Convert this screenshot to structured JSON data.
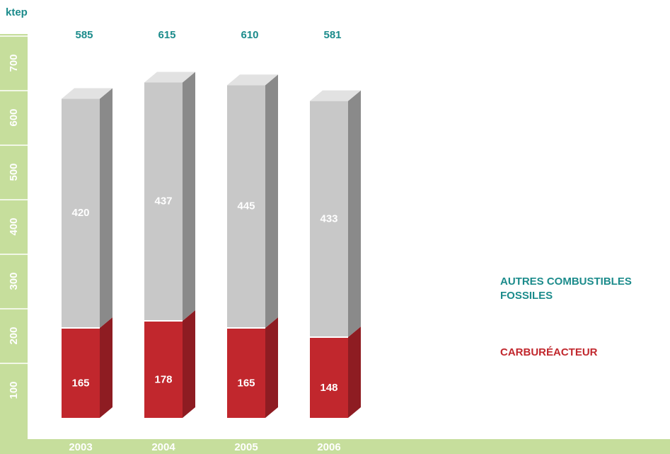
{
  "chart_data": {
    "type": "bar3d_stacked",
    "y_label": "ktep",
    "categories": [
      "2003",
      "2004",
      "2005",
      "2006"
    ],
    "series": [
      {
        "name": "CARBURÉACTEUR",
        "color": "#c1272d",
        "side_color": "#8e1c22",
        "values": [
          165,
          178,
          165,
          148
        ]
      },
      {
        "name": "AUTRES COMBUSTIBLES FOSSILES",
        "color": "#c8c8c8",
        "side_color": "#8a8a8a",
        "top_color": "#e2e2e2",
        "label_color": "#1b8b8b",
        "values": [
          420,
          437,
          445,
          433
        ]
      }
    ],
    "totals": [
      585,
      615,
      610,
      581
    ],
    "ylim": [
      0,
      700
    ],
    "yticks": [
      100,
      200,
      300,
      400,
      500,
      600,
      700
    ]
  }
}
